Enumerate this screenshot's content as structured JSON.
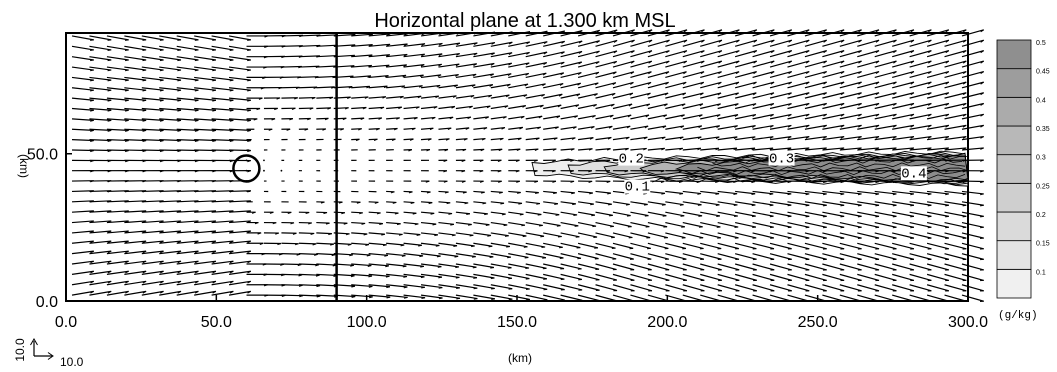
{
  "chart_data": {
    "type": "contour",
    "title": "Horizontal plane at 1.300 km MSL",
    "xlabel": "(km)",
    "ylabel": "(km)",
    "xlim": [
      0,
      300
    ],
    "ylim": [
      0,
      91
    ],
    "x_ticks": [
      "0.0",
      "50.0",
      "100.0",
      "150.0",
      "200.0",
      "250.0",
      "300.0"
    ],
    "y_ticks": [
      "0.0",
      "50.0"
    ],
    "colorbar": {
      "unit": "(g/kg)",
      "levels": [
        "0.1",
        "0.15",
        "0.2",
        "0.25",
        "0.3",
        "0.35",
        "0.4",
        "0.45",
        "0.5"
      ]
    },
    "contour_labels": [
      {
        "text": "0.1",
        "x": 190,
        "y": 37.5
      },
      {
        "text": "0.2",
        "x": 188,
        "y": 47
      },
      {
        "text": "0.3",
        "x": 238,
        "y": 47
      },
      {
        "text": "0.4",
        "x": 282,
        "y": 42
      }
    ],
    "vertical_line_x": 90,
    "circle_center": [
      60,
      45
    ],
    "plume": {
      "x_start": 155,
      "x_end": 300,
      "y_center": 45
    },
    "reference_vector": {
      "u_label": "10.0",
      "v_label": "10.0"
    }
  }
}
